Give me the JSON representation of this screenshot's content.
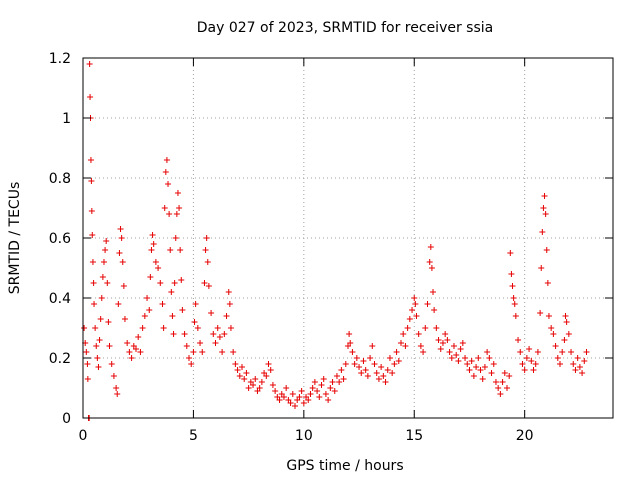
{
  "chart_data": {
    "type": "scatter",
    "title": "Day 027 of 2023, SRMTID for receiver ssia",
    "xlabel": "GPS time / hours",
    "ylabel": "SRMTID / TECUs",
    "xlim": [
      0,
      24
    ],
    "ylim": [
      0,
      1.2
    ],
    "xticks": [
      0,
      5,
      10,
      15,
      20
    ],
    "xtick_labels": [
      "0",
      "5",
      "10",
      "15",
      "20"
    ],
    "yticks": [
      0,
      0.2,
      0.4,
      0.6,
      0.8,
      1.0,
      1.2
    ],
    "ytick_labels": [
      "0",
      "0.2",
      "0.4",
      "0.6",
      "0.8",
      "1",
      "1.2"
    ],
    "grid": true,
    "marker": "plus",
    "color": "#e60000",
    "series": [
      {
        "name": "SRMTID",
        "points": [
          [
            0.05,
            0.3
          ],
          [
            0.1,
            0.25
          ],
          [
            0.15,
            0.22
          ],
          [
            0.2,
            0.18
          ],
          [
            0.22,
            0.13
          ],
          [
            0.25,
            0.0
          ],
          [
            0.28,
            0.0
          ],
          [
            0.3,
            1.18
          ],
          [
            0.32,
            1.07
          ],
          [
            0.34,
            1.0
          ],
          [
            0.36,
            0.86
          ],
          [
            0.38,
            0.79
          ],
          [
            0.4,
            0.69
          ],
          [
            0.42,
            0.61
          ],
          [
            0.45,
            0.52
          ],
          [
            0.48,
            0.45
          ],
          [
            0.5,
            0.38
          ],
          [
            0.55,
            0.3
          ],
          [
            0.6,
            0.24
          ],
          [
            0.65,
            0.2
          ],
          [
            0.7,
            0.17
          ],
          [
            0.75,
            0.26
          ],
          [
            0.8,
            0.33
          ],
          [
            0.85,
            0.4
          ],
          [
            0.9,
            0.47
          ],
          [
            0.95,
            0.52
          ],
          [
            1.0,
            0.56
          ],
          [
            1.05,
            0.59
          ],
          [
            1.1,
            0.45
          ],
          [
            1.15,
            0.32
          ],
          [
            1.2,
            0.24
          ],
          [
            1.3,
            0.18
          ],
          [
            1.4,
            0.14
          ],
          [
            1.5,
            0.1
          ],
          [
            1.55,
            0.08
          ],
          [
            1.6,
            0.38
          ],
          [
            1.65,
            0.55
          ],
          [
            1.7,
            0.63
          ],
          [
            1.75,
            0.6
          ],
          [
            1.8,
            0.52
          ],
          [
            1.85,
            0.44
          ],
          [
            1.9,
            0.33
          ],
          [
            2.0,
            0.25
          ],
          [
            2.1,
            0.22
          ],
          [
            2.2,
            0.2
          ],
          [
            2.3,
            0.24
          ],
          [
            2.4,
            0.23
          ],
          [
            2.5,
            0.27
          ],
          [
            2.6,
            0.22
          ],
          [
            2.7,
            0.3
          ],
          [
            2.8,
            0.34
          ],
          [
            2.9,
            0.4
          ],
          [
            3.0,
            0.36
          ],
          [
            3.05,
            0.47
          ],
          [
            3.1,
            0.56
          ],
          [
            3.15,
            0.61
          ],
          [
            3.2,
            0.58
          ],
          [
            3.3,
            0.52
          ],
          [
            3.4,
            0.5
          ],
          [
            3.5,
            0.45
          ],
          [
            3.6,
            0.38
          ],
          [
            3.65,
            0.3
          ],
          [
            3.7,
            0.7
          ],
          [
            3.75,
            0.82
          ],
          [
            3.8,
            0.86
          ],
          [
            3.85,
            0.78
          ],
          [
            3.9,
            0.68
          ],
          [
            3.95,
            0.56
          ],
          [
            4.0,
            0.42
          ],
          [
            4.05,
            0.34
          ],
          [
            4.1,
            0.28
          ],
          [
            4.15,
            0.45
          ],
          [
            4.2,
            0.6
          ],
          [
            4.25,
            0.68
          ],
          [
            4.3,
            0.75
          ],
          [
            4.35,
            0.7
          ],
          [
            4.4,
            0.56
          ],
          [
            4.45,
            0.46
          ],
          [
            4.5,
            0.36
          ],
          [
            4.6,
            0.28
          ],
          [
            4.7,
            0.24
          ],
          [
            4.8,
            0.2
          ],
          [
            4.9,
            0.18
          ],
          [
            5.0,
            0.22
          ],
          [
            5.05,
            0.32
          ],
          [
            5.1,
            0.38
          ],
          [
            5.2,
            0.3
          ],
          [
            5.3,
            0.25
          ],
          [
            5.4,
            0.22
          ],
          [
            5.5,
            0.45
          ],
          [
            5.55,
            0.56
          ],
          [
            5.6,
            0.6
          ],
          [
            5.65,
            0.52
          ],
          [
            5.7,
            0.44
          ],
          [
            5.8,
            0.35
          ],
          [
            5.9,
            0.28
          ],
          [
            6.0,
            0.25
          ],
          [
            6.1,
            0.3
          ],
          [
            6.2,
            0.27
          ],
          [
            6.3,
            0.22
          ],
          [
            6.4,
            0.28
          ],
          [
            6.5,
            0.34
          ],
          [
            6.6,
            0.42
          ],
          [
            6.65,
            0.38
          ],
          [
            6.7,
            0.3
          ],
          [
            6.8,
            0.22
          ],
          [
            6.9,
            0.18
          ],
          [
            7.0,
            0.16
          ],
          [
            7.1,
            0.14
          ],
          [
            7.2,
            0.17
          ],
          [
            7.3,
            0.13
          ],
          [
            7.4,
            0.15
          ],
          [
            7.5,
            0.1
          ],
          [
            7.6,
            0.12
          ],
          [
            7.7,
            0.11
          ],
          [
            7.8,
            0.13
          ],
          [
            7.9,
            0.09
          ],
          [
            8.0,
            0.1
          ],
          [
            8.1,
            0.12
          ],
          [
            8.2,
            0.15
          ],
          [
            8.3,
            0.14
          ],
          [
            8.4,
            0.18
          ],
          [
            8.5,
            0.16
          ],
          [
            8.6,
            0.11
          ],
          [
            8.7,
            0.09
          ],
          [
            8.8,
            0.07
          ],
          [
            8.9,
            0.06
          ],
          [
            9.0,
            0.08
          ],
          [
            9.1,
            0.07
          ],
          [
            9.2,
            0.1
          ],
          [
            9.3,
            0.06
          ],
          [
            9.4,
            0.05
          ],
          [
            9.5,
            0.08
          ],
          [
            9.6,
            0.04
          ],
          [
            9.7,
            0.06
          ],
          [
            9.8,
            0.07
          ],
          [
            9.9,
            0.09
          ],
          [
            10.0,
            0.05
          ],
          [
            10.1,
            0.07
          ],
          [
            10.2,
            0.06
          ],
          [
            10.3,
            0.08
          ],
          [
            10.4,
            0.1
          ],
          [
            10.5,
            0.12
          ],
          [
            10.6,
            0.09
          ],
          [
            10.7,
            0.07
          ],
          [
            10.8,
            0.11
          ],
          [
            10.9,
            0.13
          ],
          [
            11.0,
            0.08
          ],
          [
            11.1,
            0.06
          ],
          [
            11.2,
            0.1
          ],
          [
            11.3,
            0.12
          ],
          [
            11.4,
            0.09
          ],
          [
            11.5,
            0.14
          ],
          [
            11.6,
            0.12
          ],
          [
            11.7,
            0.16
          ],
          [
            11.8,
            0.13
          ],
          [
            11.9,
            0.18
          ],
          [
            12.0,
            0.24
          ],
          [
            12.05,
            0.28
          ],
          [
            12.1,
            0.25
          ],
          [
            12.2,
            0.22
          ],
          [
            12.3,
            0.18
          ],
          [
            12.4,
            0.2
          ],
          [
            12.5,
            0.17
          ],
          [
            12.6,
            0.15
          ],
          [
            12.7,
            0.19
          ],
          [
            12.8,
            0.16
          ],
          [
            12.9,
            0.14
          ],
          [
            13.0,
            0.2
          ],
          [
            13.1,
            0.24
          ],
          [
            13.2,
            0.18
          ],
          [
            13.3,
            0.15
          ],
          [
            13.4,
            0.13
          ],
          [
            13.5,
            0.17
          ],
          [
            13.6,
            0.14
          ],
          [
            13.7,
            0.12
          ],
          [
            13.8,
            0.16
          ],
          [
            13.9,
            0.2
          ],
          [
            14.0,
            0.15
          ],
          [
            14.1,
            0.18
          ],
          [
            14.2,
            0.22
          ],
          [
            14.3,
            0.19
          ],
          [
            14.4,
            0.25
          ],
          [
            14.5,
            0.28
          ],
          [
            14.6,
            0.24
          ],
          [
            14.7,
            0.3
          ],
          [
            14.8,
            0.33
          ],
          [
            14.9,
            0.36
          ],
          [
            15.0,
            0.4
          ],
          [
            15.05,
            0.38
          ],
          [
            15.1,
            0.34
          ],
          [
            15.2,
            0.28
          ],
          [
            15.3,
            0.24
          ],
          [
            15.4,
            0.22
          ],
          [
            15.5,
            0.3
          ],
          [
            15.6,
            0.38
          ],
          [
            15.7,
            0.52
          ],
          [
            15.75,
            0.57
          ],
          [
            15.8,
            0.5
          ],
          [
            15.85,
            0.42
          ],
          [
            15.9,
            0.36
          ],
          [
            16.0,
            0.3
          ],
          [
            16.1,
            0.26
          ],
          [
            16.2,
            0.23
          ],
          [
            16.3,
            0.25
          ],
          [
            16.4,
            0.28
          ],
          [
            16.5,
            0.26
          ],
          [
            16.6,
            0.22
          ],
          [
            16.7,
            0.2
          ],
          [
            16.8,
            0.24
          ],
          [
            16.9,
            0.21
          ],
          [
            17.0,
            0.19
          ],
          [
            17.1,
            0.23
          ],
          [
            17.2,
            0.25
          ],
          [
            17.3,
            0.2
          ],
          [
            17.4,
            0.18
          ],
          [
            17.5,
            0.16
          ],
          [
            17.6,
            0.19
          ],
          [
            17.7,
            0.14
          ],
          [
            17.8,
            0.17
          ],
          [
            17.9,
            0.2
          ],
          [
            18.0,
            0.16
          ],
          [
            18.1,
            0.13
          ],
          [
            18.2,
            0.17
          ],
          [
            18.3,
            0.22
          ],
          [
            18.4,
            0.2
          ],
          [
            18.5,
            0.15
          ],
          [
            18.6,
            0.18
          ],
          [
            18.7,
            0.12
          ],
          [
            18.8,
            0.1
          ],
          [
            18.9,
            0.08
          ],
          [
            19.0,
            0.12
          ],
          [
            19.1,
            0.15
          ],
          [
            19.2,
            0.1
          ],
          [
            19.3,
            0.14
          ],
          [
            19.35,
            0.55
          ],
          [
            19.4,
            0.48
          ],
          [
            19.45,
            0.44
          ],
          [
            19.5,
            0.4
          ],
          [
            19.55,
            0.38
          ],
          [
            19.6,
            0.34
          ],
          [
            19.7,
            0.26
          ],
          [
            19.8,
            0.22
          ],
          [
            19.9,
            0.18
          ],
          [
            20.0,
            0.16
          ],
          [
            20.1,
            0.2
          ],
          [
            20.2,
            0.23
          ],
          [
            20.3,
            0.19
          ],
          [
            20.4,
            0.16
          ],
          [
            20.5,
            0.18
          ],
          [
            20.6,
            0.22
          ],
          [
            20.7,
            0.35
          ],
          [
            20.75,
            0.5
          ],
          [
            20.8,
            0.62
          ],
          [
            20.85,
            0.7
          ],
          [
            20.9,
            0.74
          ],
          [
            20.95,
            0.68
          ],
          [
            21.0,
            0.56
          ],
          [
            21.05,
            0.45
          ],
          [
            21.1,
            0.34
          ],
          [
            21.2,
            0.3
          ],
          [
            21.3,
            0.28
          ],
          [
            21.4,
            0.24
          ],
          [
            21.5,
            0.2
          ],
          [
            21.6,
            0.18
          ],
          [
            21.7,
            0.22
          ],
          [
            21.8,
            0.26
          ],
          [
            21.85,
            0.34
          ],
          [
            21.9,
            0.32
          ],
          [
            22.0,
            0.28
          ],
          [
            22.1,
            0.22
          ],
          [
            22.2,
            0.18
          ],
          [
            22.3,
            0.16
          ],
          [
            22.4,
            0.2
          ],
          [
            22.5,
            0.17
          ],
          [
            22.6,
            0.15
          ],
          [
            22.7,
            0.19
          ],
          [
            22.8,
            0.22
          ]
        ]
      }
    ]
  }
}
